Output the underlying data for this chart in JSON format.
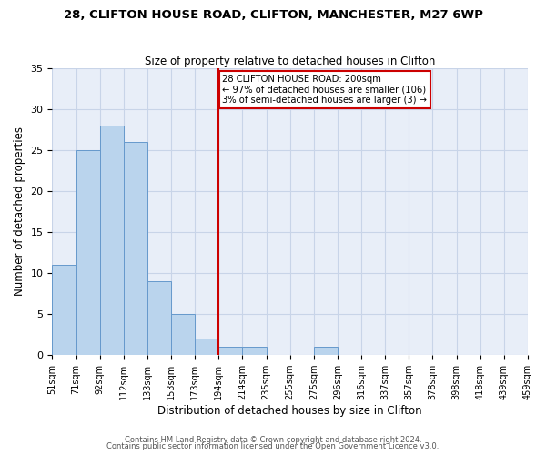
{
  "title": "28, CLIFTON HOUSE ROAD, CLIFTON, MANCHESTER, M27 6WP",
  "subtitle": "Size of property relative to detached houses in Clifton",
  "xlabel": "Distribution of detached houses by size in Clifton",
  "ylabel": "Number of detached properties",
  "bin_labels": [
    "51sqm",
    "71sqm",
    "92sqm",
    "112sqm",
    "133sqm",
    "153sqm",
    "173sqm",
    "194sqm",
    "214sqm",
    "235sqm",
    "255sqm",
    "275sqm",
    "296sqm",
    "316sqm",
    "337sqm",
    "357sqm",
    "378sqm",
    "398sqm",
    "418sqm",
    "439sqm",
    "459sqm"
  ],
  "bar_values": [
    11,
    25,
    28,
    26,
    9,
    5,
    2,
    1,
    1,
    0,
    0,
    1,
    0,
    0,
    0,
    0,
    0,
    0,
    0,
    0
  ],
  "bar_color": "#bad4ed",
  "bar_edge_color": "#6699cc",
  "grid_color": "#c8d4e8",
  "background_color": "#e8eef8",
  "vline_x_idx": 7,
  "vline_color": "#cc0000",
  "annotation_text": "28 CLIFTON HOUSE ROAD: 200sqm\n← 97% of detached houses are smaller (106)\n3% of semi-detached houses are larger (3) →",
  "annotation_box_color": "#ffffff",
  "annotation_box_edge": "#cc0000",
  "ylim": [
    0,
    35
  ],
  "yticks": [
    0,
    5,
    10,
    15,
    20,
    25,
    30,
    35
  ],
  "footer_line1": "Contains HM Land Registry data © Crown copyright and database right 2024.",
  "footer_line2": "Contains public sector information licensed under the Open Government Licence v3.0.",
  "n_bins": 20
}
